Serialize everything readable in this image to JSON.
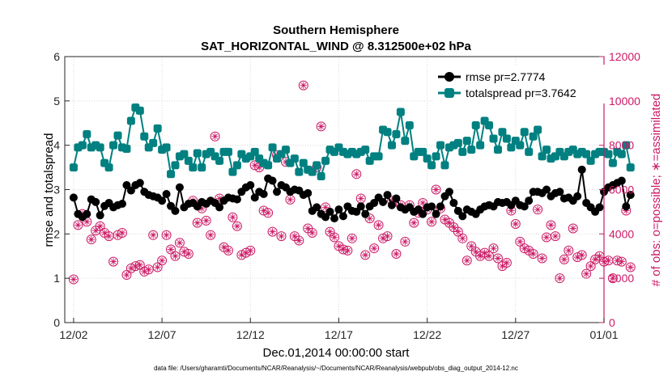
{
  "chart_data": {
    "type": "line",
    "title": "Southern Hemisphere",
    "subtitle": "SAT_HORIZONTAL_WIND @ 8.312500e+02 hPa",
    "xlabel": "Dec.01,2014 00:00:00 start",
    "ylabel_left": "rmse and totalspread",
    "ylabel_right": "# of obs: o=possible; ∗=assimilated",
    "x_tick_labels": [
      "12/02",
      "12/07",
      "12/12",
      "12/17",
      "12/22",
      "12/27",
      "01/01"
    ],
    "x_ticks_day": [
      1,
      6,
      11,
      16,
      21,
      26,
      31
    ],
    "xlim_day": [
      0.5,
      31
    ],
    "ylim_left": [
      0,
      6
    ],
    "ylim_right": [
      0,
      12000
    ],
    "y_ticks_left": [
      "0",
      "1",
      "2",
      "3",
      "4",
      "5",
      "6"
    ],
    "y_ticks_right": [
      "0",
      "2000",
      "4000",
      "6000",
      "8000",
      "10000",
      "12000"
    ],
    "grid": true,
    "legend_position": "top-right",
    "colors": {
      "rmse": "#000000",
      "totalspread": "#008080",
      "obs": "#cc1a66"
    },
    "series": [
      {
        "name": "rmse pr=2.7774",
        "axis": "left",
        "values": [
          2.82,
          2.45,
          2.38,
          2.45,
          2.78,
          2.72,
          2.42,
          2.63,
          2.7,
          2.6,
          2.65,
          2.68,
          3.1,
          2.98,
          3.1,
          3.15,
          2.95,
          2.88,
          2.85,
          2.82,
          2.75,
          2.9,
          2.63,
          2.52,
          3.05,
          2.6,
          2.68,
          2.7,
          2.62,
          2.72,
          2.68,
          2.75,
          2.7,
          2.6,
          2.75,
          2.82,
          2.8,
          2.78,
          2.95,
          3.05,
          3.1,
          2.82,
          2.95,
          2.9,
          3.25,
          3.2,
          2.95,
          3.1,
          3.05,
          2.95,
          3.0,
          2.98,
          2.88,
          2.92,
          2.52,
          2.6,
          2.45,
          2.38,
          2.5,
          2.35,
          2.55,
          2.4,
          2.62,
          2.52,
          2.5,
          2.62,
          2.45,
          2.62,
          2.7,
          2.82,
          2.72,
          2.88,
          2.65,
          2.8,
          2.6,
          2.55,
          2.6,
          2.5,
          2.55,
          2.45,
          2.6,
          2.62,
          2.45,
          2.62,
          2.85,
          2.95,
          2.7,
          2.52,
          2.4,
          2.55,
          2.5,
          2.45,
          2.55,
          2.62,
          2.65,
          2.62,
          2.72,
          2.7,
          2.72,
          2.65,
          2.75,
          2.65,
          2.62,
          2.75,
          2.95,
          2.95,
          2.92,
          3.0,
          2.85,
          2.92,
          2.95,
          2.8,
          2.82,
          2.75,
          2.85,
          3.45,
          2.7,
          2.6,
          2.5,
          2.6,
          2.95,
          3.05,
          3.1,
          3.15,
          3.2,
          2.62,
          2.88
        ]
      },
      {
        "name": "totalspread pr=3.7642",
        "axis": "left",
        "values": [
          3.5,
          3.95,
          4.0,
          4.25,
          3.95,
          4.0,
          3.95,
          3.6,
          3.5,
          4.0,
          4.22,
          3.95,
          3.92,
          4.55,
          4.85,
          4.78,
          4.2,
          3.95,
          4.05,
          4.38,
          3.9,
          3.95,
          3.35,
          3.55,
          3.75,
          3.8,
          3.65,
          3.5,
          3.82,
          3.5,
          3.8,
          3.85,
          3.75,
          3.65,
          3.85,
          3.85,
          3.4,
          3.55,
          3.8,
          3.7,
          3.75,
          3.85,
          3.7,
          3.6,
          3.55,
          3.95,
          3.7,
          3.8,
          3.9,
          3.6,
          3.7,
          3.4,
          3.6,
          3.45,
          3.4,
          3.55,
          3.3,
          3.65,
          3.9,
          3.85,
          3.95,
          3.85,
          3.8,
          3.85,
          3.8,
          3.85,
          3.9,
          3.65,
          3.75,
          3.75,
          4.35,
          4.3,
          4.0,
          4.25,
          4.75,
          4.1,
          4.45,
          3.75,
          3.85,
          3.85,
          3.7,
          3.55,
          3.75,
          4.0,
          3.55,
          3.95,
          4.0,
          4.05,
          3.85,
          4.1,
          3.9,
          4.45,
          4.0,
          4.55,
          4.45,
          4.15,
          3.9,
          4.3,
          4.15,
          3.95,
          4.1,
          4.0,
          4.3,
          3.85,
          4.2,
          4.35,
          3.75,
          3.9,
          3.7,
          3.75,
          3.85,
          3.75,
          3.85,
          3.9,
          3.8,
          3.85,
          3.8,
          3.65,
          3.8,
          3.85,
          3.85,
          3.8,
          3.6,
          3.85,
          3.8,
          4.0,
          3.5
        ]
      },
      {
        "name": "# of obs assimilated",
        "axis": "right",
        "values": [
          1950,
          4400,
          4900,
          4550,
          3750,
          4150,
          4350,
          4050,
          3900,
          2750,
          3950,
          4050,
          2150,
          2450,
          2550,
          2600,
          2300,
          2400,
          3950,
          2500,
          2800,
          3950,
          3300,
          3000,
          3600,
          3200,
          3100,
          5500,
          4500,
          5150,
          4600,
          3950,
          8400,
          5600,
          3400,
          3250,
          4750,
          4350,
          3050,
          3150,
          3250,
          7100,
          7000,
          5050,
          4950,
          4100,
          7550,
          3900,
          7250,
          5550,
          3900,
          3700,
          10700,
          4250,
          4050,
          7000,
          8850,
          5200,
          4100,
          3850,
          3450,
          3300,
          3250,
          3800,
          6700,
          5600,
          3050,
          4700,
          3350,
          4400,
          3800,
          3900,
          5500,
          3100,
          5300,
          3650,
          5300,
          4500,
          4950,
          5400,
          5100,
          4550,
          6000,
          5150,
          4650,
          4500,
          4300,
          4100,
          3800,
          2800,
          3450,
          3200,
          3000,
          3150,
          3000,
          3350,
          2900,
          2550,
          2700,
          5050,
          4450,
          3650,
          3350,
          3250,
          3100,
          5100,
          2900,
          3850,
          4400,
          3900,
          2000,
          2850,
          3250,
          4250,
          2950,
          3050,
          2200,
          2550,
          2850,
          3000,
          2750,
          2800,
          2000,
          2800,
          2750,
          5050,
          2500
        ]
      }
    ]
  },
  "footer": {
    "data_file": "data file: /Users/gharamti/Documents/NCAR/Reanalysis/~/Documents/NCAR/Reanalysis/webpub/obs_diag_output_2014-12.nc"
  }
}
